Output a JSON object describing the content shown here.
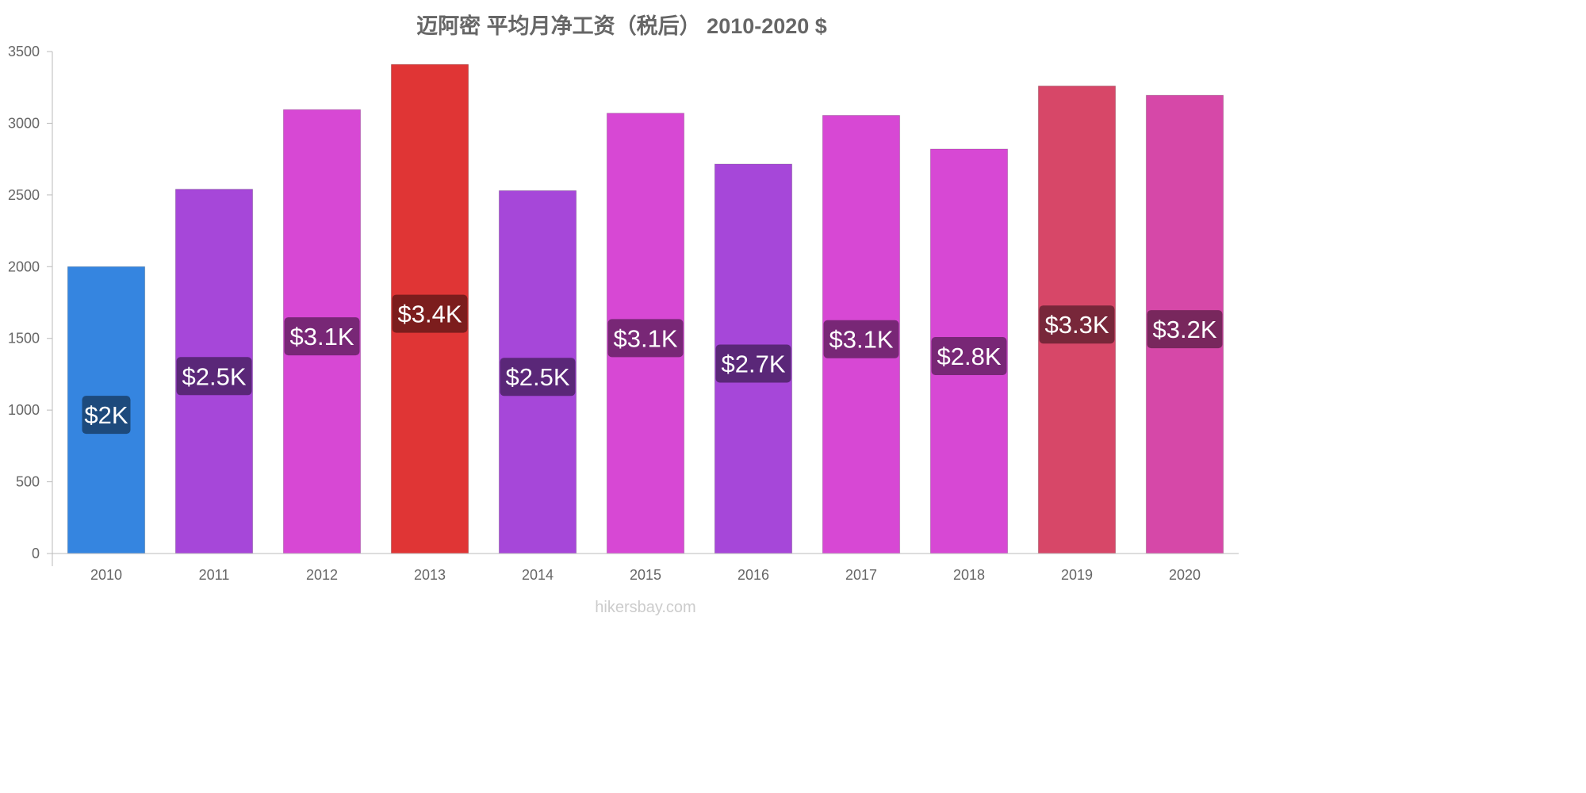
{
  "chart_data": {
    "type": "bar",
    "title": "迈阿密 平均月净工资（税后） 2010-2020 $",
    "categories": [
      "2010",
      "2011",
      "2012",
      "2013",
      "2014",
      "2015",
      "2016",
      "2017",
      "2018",
      "2019",
      "2020"
    ],
    "values": [
      2000,
      2540,
      3095,
      3410,
      2530,
      3070,
      2715,
      3055,
      2820,
      3260,
      3195
    ],
    "data_labels": [
      "$2K",
      "$2.5K",
      "$3.1K",
      "$3.4K",
      "$2.5K",
      "$3.1K",
      "$2.7K",
      "$3.1K",
      "$2.8K",
      "$3.3K",
      "$3.2K"
    ],
    "colors": [
      "#3585e0",
      "#a647d9",
      "#d748d4",
      "#e03535",
      "#a647d9",
      "#d748d4",
      "#a647d9",
      "#d748d4",
      "#d748d4",
      "#d74768",
      "#d648a8"
    ],
    "label_bg_colors": [
      "#1d4a7c",
      "#5a2778",
      "#782776",
      "#7c1d1d",
      "#5a2778",
      "#782776",
      "#5a2778",
      "#782776",
      "#782776",
      "#78273a",
      "#78275d"
    ],
    "ylim": [
      0,
      3500
    ],
    "yticks": [
      0,
      500,
      1000,
      1500,
      2000,
      2500,
      3000,
      3500
    ],
    "grid": false,
    "xlabel": "",
    "ylabel": ""
  },
  "watermark": "hikersbay.com"
}
